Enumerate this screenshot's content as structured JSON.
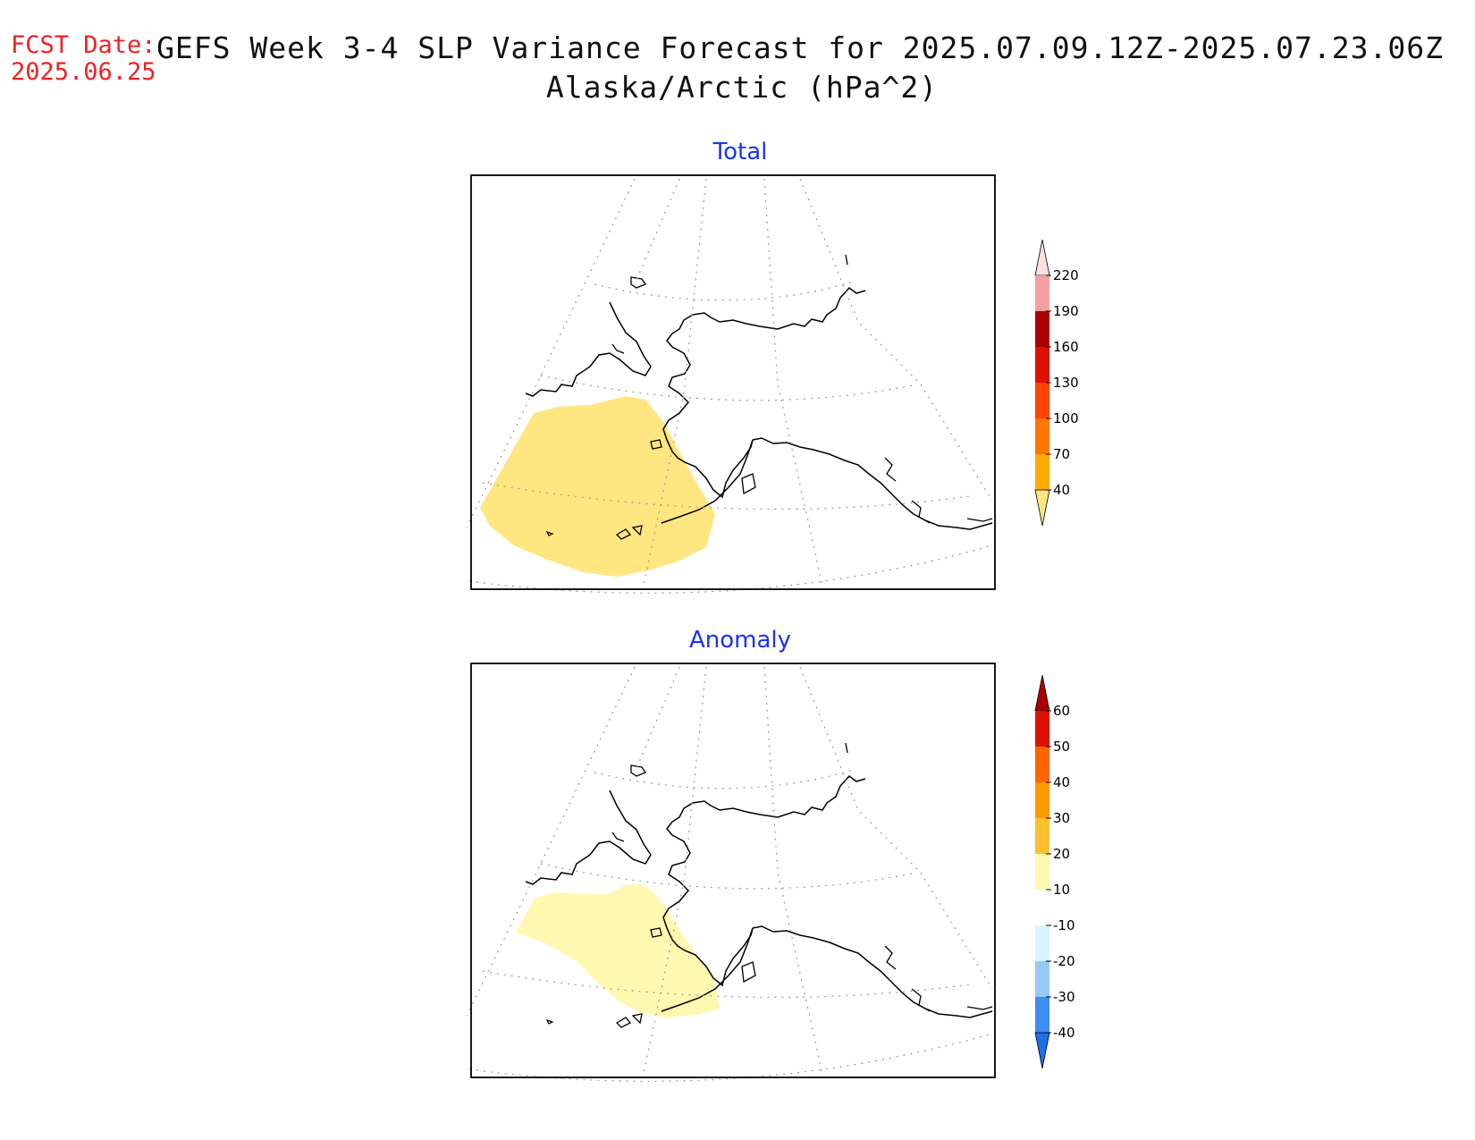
{
  "header": {
    "fcst_label": "FCST Date:",
    "fcst_date": "2025.06.25",
    "title_line1": "GEFS Week 3-4 SLP Variance Forecast for 2025.07.09.12Z-2025.07.23.06Z",
    "title_line2": "Alaska/Arctic (hPa^2)"
  },
  "panels": [
    {
      "title": "Total",
      "legend": {
        "levels": [
          "40",
          "70",
          "100",
          "130",
          "160",
          "190",
          "220"
        ],
        "colors": [
          "#ffe680",
          "#ffaa00",
          "#ff7700",
          "#ff4400",
          "#dd1100",
          "#aa0000",
          "#f4a0a0",
          "#ffe0e0"
        ]
      }
    },
    {
      "title": "Anomaly",
      "legend": {
        "levels": [
          "-40",
          "-30",
          "-20",
          "-10",
          "10",
          "20",
          "30",
          "40",
          "50",
          "60"
        ],
        "colors": [
          "#1f6fe8",
          "#3c8ef0",
          "#96caf5",
          "#d8f6ff",
          "#ffffff",
          "#fff8b0",
          "#ffc030",
          "#ff9900",
          "#ff6600",
          "#dd1100",
          "#aa0000"
        ]
      }
    }
  ]
}
